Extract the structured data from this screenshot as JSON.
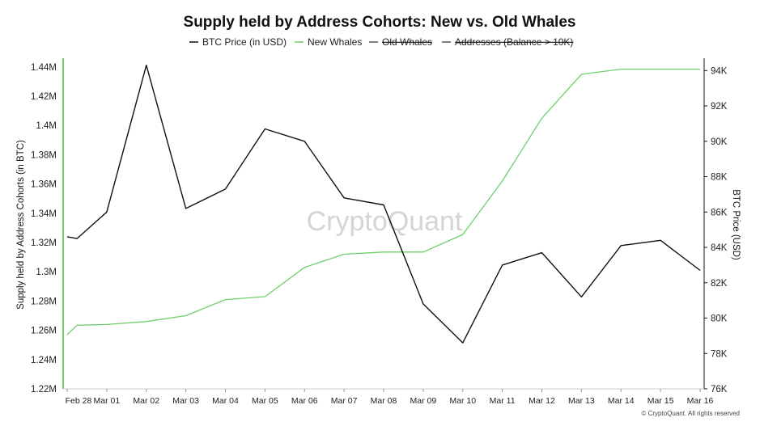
{
  "chart_data": {
    "type": "line",
    "title": "Supply held by Address Cohorts: New vs. Old Whales",
    "legend": {
      "placement": "top-center",
      "items": [
        {
          "label": "BTC Price (in USD)",
          "color": "#111111",
          "hidden": false
        },
        {
          "label": "New Whales",
          "color": "#6ecf68",
          "hidden": false
        },
        {
          "label": "Old Whales",
          "color": "#555555",
          "hidden": true
        },
        {
          "label": "Addresses (Balance > 10K)",
          "color": "#555555",
          "hidden": true
        }
      ]
    },
    "x": [
      "Feb 28",
      "Mar 01",
      "Mar 02",
      "Mar 03",
      "Mar 04",
      "Mar 05",
      "Mar 06",
      "Mar 07",
      "Mar 08",
      "Mar 09",
      "Mar 10",
      "Mar 11",
      "Mar 12",
      "Mar 13",
      "Mar 14",
      "Mar 15",
      "Mar 16"
    ],
    "ylabel": "Supply held by Address Cohorts (in BTC)",
    "y_ticks": [
      "1.22M",
      "1.24M",
      "1.26M",
      "1.28M",
      "1.3M",
      "1.32M",
      "1.34M",
      "1.36M",
      "1.38M",
      "1.4M",
      "1.42M",
      "1.44M"
    ],
    "ylim": [
      1220000,
      1446000
    ],
    "y2label": "BTC Price (USD)",
    "y2_ticks": [
      "76K",
      "78K",
      "80K",
      "82K",
      "84K",
      "86K",
      "88K",
      "90K",
      "92K",
      "94K"
    ],
    "y2lim": [
      76000,
      94700
    ],
    "series": [
      {
        "name": "BTC Price (in USD)",
        "axis": "right",
        "color": "#111111",
        "points": [
          [
            0,
            84600
          ],
          [
            0.25,
            84500
          ],
          [
            1,
            86000
          ],
          [
            2,
            94300
          ],
          [
            3,
            86200
          ],
          [
            4,
            87300
          ],
          [
            5,
            90700
          ],
          [
            6,
            90000
          ],
          [
            7,
            86800
          ],
          [
            8,
            86400
          ],
          [
            9,
            80800
          ],
          [
            10,
            78600
          ],
          [
            11,
            83000
          ],
          [
            12,
            83700
          ],
          [
            13,
            81200
          ],
          [
            14,
            84100
          ],
          [
            15,
            84400
          ],
          [
            16,
            82700
          ]
        ]
      },
      {
        "name": "New Whales",
        "axis": "left",
        "color": "#6ecf68",
        "points": [
          [
            0,
            1257000
          ],
          [
            0.25,
            1263500
          ],
          [
            1,
            1264000
          ],
          [
            2,
            1266000
          ],
          [
            3,
            1270000
          ],
          [
            4,
            1281000
          ],
          [
            5,
            1283000
          ],
          [
            6,
            1303000
          ],
          [
            7,
            1312000
          ],
          [
            8,
            1313500
          ],
          [
            9,
            1313500
          ],
          [
            10,
            1325500
          ],
          [
            11,
            1362000
          ],
          [
            12,
            1405000
          ],
          [
            13,
            1435000
          ],
          [
            14,
            1438500
          ],
          [
            15,
            1438500
          ],
          [
            16,
            1438500
          ]
        ]
      }
    ],
    "grid": false,
    "watermark": "CryptoQuant",
    "footer": "© CryptoQuant. All rights reserved"
  }
}
